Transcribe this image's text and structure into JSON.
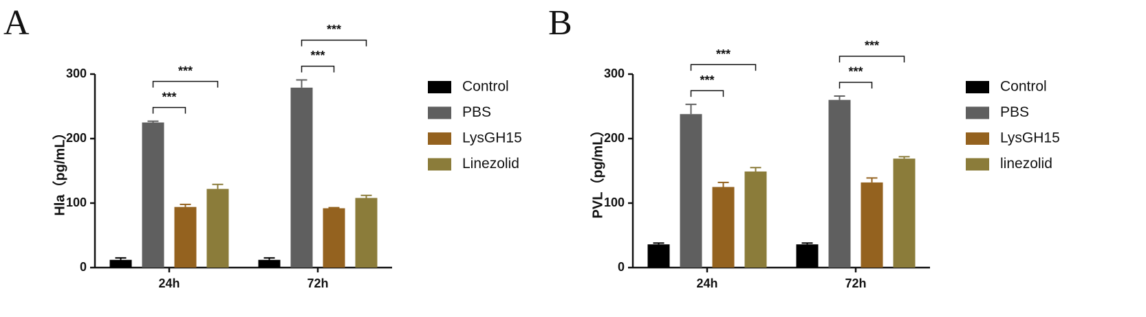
{
  "chart_data": [
    {
      "type": "bar",
      "panel_label": "A",
      "ylabel": "Hla（pg/mL）",
      "categories": [
        "24h",
        "72h"
      ],
      "ylim": [
        0,
        300
      ],
      "yticks": [
        0,
        100,
        200,
        300
      ],
      "series": [
        {
          "name": "Control",
          "color": "#000000",
          "values": [
            12,
            12
          ],
          "errors": [
            3,
            3
          ]
        },
        {
          "name": "PBS",
          "color": "#5f5f5f",
          "values": [
            225,
            279
          ],
          "errors": [
            2,
            12
          ]
        },
        {
          "name": "LysGH15",
          "color": "#94621f",
          "values": [
            94,
            92
          ],
          "errors": [
            4,
            1
          ]
        },
        {
          "name": "Linezolid",
          "color": "#8b7c3a",
          "values": [
            122,
            108
          ],
          "errors": [
            7,
            4
          ]
        }
      ],
      "significance": [
        "***",
        "***",
        "***",
        "***"
      ]
    },
    {
      "type": "bar",
      "panel_label": "B",
      "ylabel": "PVL（pg/mL）",
      "categories": [
        "24h",
        "72h"
      ],
      "ylim": [
        0,
        300
      ],
      "yticks": [
        0,
        100,
        200,
        300
      ],
      "series": [
        {
          "name": "Control",
          "color": "#000000",
          "values": [
            36,
            36
          ],
          "errors": [
            2,
            2
          ]
        },
        {
          "name": "PBS",
          "color": "#5f5f5f",
          "values": [
            238,
            260
          ],
          "errors": [
            15,
            6
          ]
        },
        {
          "name": "LysGH15",
          "color": "#94621f",
          "values": [
            125,
            132
          ],
          "errors": [
            7,
            7
          ]
        },
        {
          "name": "linezolid",
          "color": "#8b7c3a",
          "values": [
            149,
            169
          ],
          "errors": [
            6,
            3
          ]
        }
      ],
      "significance": [
        "***",
        "***",
        "***",
        "***"
      ]
    }
  ]
}
